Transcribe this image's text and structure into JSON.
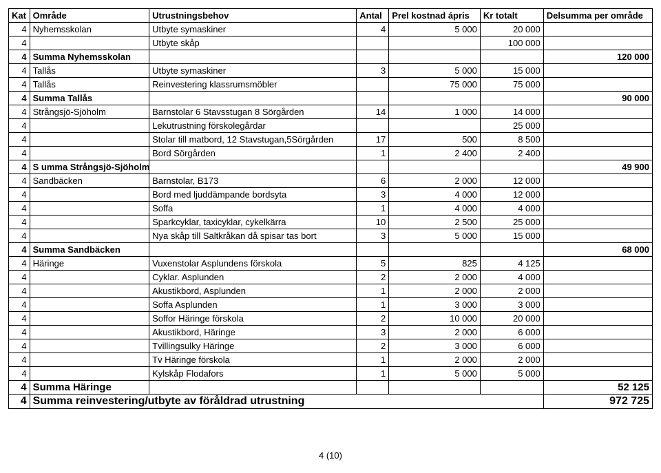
{
  "headers": {
    "kat": "Kat",
    "omrade": "Område",
    "behov": "Utrustningsbehov",
    "antal": "Antal",
    "apris": "Prel kostnad ápris",
    "totalt": "Kr totalt",
    "delsum": "Delsumma per område"
  },
  "rows": [
    {
      "kat": "4",
      "omrade": "Nyhemsskolan",
      "behov": "Utbyte symaskiner",
      "antal": "4",
      "apris": "5 000",
      "totalt": "20 000",
      "delsum": ""
    },
    {
      "kat": "4",
      "omrade": "",
      "behov": "Utbyte skåp",
      "antal": "",
      "apris": "",
      "totalt": "100 000",
      "delsum": ""
    },
    {
      "kat": "4",
      "omrade": "Summa Nyhemsskolan",
      "behov": "",
      "antal": "",
      "apris": "",
      "totalt": "",
      "delsum": "120 000",
      "bold": true
    },
    {
      "kat": "4",
      "omrade": "Tallås",
      "behov": "Utbyte symaskiner",
      "antal": "3",
      "apris": "5 000",
      "totalt": "15 000",
      "delsum": ""
    },
    {
      "kat": "4",
      "omrade": "Tallås",
      "behov": "Reinvestering klassrumsmöbler",
      "antal": "",
      "apris": "75 000",
      "totalt": "75 000",
      "delsum": ""
    },
    {
      "kat": "4",
      "omrade": "Summa Tallås",
      "behov": "",
      "antal": "",
      "apris": "",
      "totalt": "",
      "delsum": "90 000",
      "bold": true
    },
    {
      "kat": "4",
      "omrade": "Strångsjö-Sjöholm",
      "behov": "Barnstolar 6 Stavsstugan 8 Sörgården",
      "antal": "14",
      "apris": "1 000",
      "totalt": "14 000",
      "delsum": ""
    },
    {
      "kat": "4",
      "omrade": "",
      "behov": "Lekutrustning förskolegårdar",
      "antal": "",
      "apris": "",
      "totalt": "25 000",
      "delsum": ""
    },
    {
      "kat": "4",
      "omrade": "",
      "behov": "Stolar till matbord, 12 Stavstugan,5Sörgården",
      "antal": "17",
      "apris": "500",
      "totalt": "8 500",
      "delsum": ""
    },
    {
      "kat": "4",
      "omrade": "",
      "behov": "Bord Sörgården",
      "antal": "1",
      "apris": "2 400",
      "totalt": "2 400",
      "delsum": ""
    },
    {
      "kat": "4",
      "omrade": "S umma Strångsjö-Sjöholm",
      "behov": "",
      "antal": "",
      "apris": "",
      "totalt": "",
      "delsum": "49 900",
      "bold": true
    },
    {
      "kat": "4",
      "omrade": "Sandbäcken",
      "behov": "Barnstolar, B173",
      "antal": "6",
      "apris": "2 000",
      "totalt": "12 000",
      "delsum": ""
    },
    {
      "kat": "4",
      "omrade": "",
      "behov": "Bord med ljuddämpande bordsyta",
      "antal": "3",
      "apris": "4 000",
      "totalt": "12 000",
      "delsum": ""
    },
    {
      "kat": "4",
      "omrade": "",
      "behov": "Soffa",
      "antal": "1",
      "apris": "4 000",
      "totalt": "4 000",
      "delsum": ""
    },
    {
      "kat": "4",
      "omrade": "",
      "behov": "Sparkcyklar, taxicyklar, cykelkärra",
      "antal": "10",
      "apris": "2 500",
      "totalt": "25 000",
      "delsum": ""
    },
    {
      "kat": "4",
      "omrade": "",
      "behov": "Nya skåp till Saltkråkan då spisar tas bort",
      "antal": "3",
      "apris": "5 000",
      "totalt": "15 000",
      "delsum": ""
    },
    {
      "kat": "4",
      "omrade": "Summa Sandbäcken",
      "behov": "",
      "antal": "",
      "apris": "",
      "totalt": "",
      "delsum": "68 000",
      "bold": true
    },
    {
      "kat": "4",
      "omrade": "Häringe",
      "behov": "Vuxenstolar Asplundens förskola",
      "antal": "5",
      "apris": "825",
      "totalt": "4 125",
      "delsum": ""
    },
    {
      "kat": "4",
      "omrade": "",
      "behov": "Cyklar. Asplunden",
      "antal": "2",
      "apris": "2 000",
      "totalt": "4 000",
      "delsum": ""
    },
    {
      "kat": "4",
      "omrade": "",
      "behov": "Akustikbord, Asplunden",
      "antal": "1",
      "apris": "2 000",
      "totalt": "2 000",
      "delsum": ""
    },
    {
      "kat": "4",
      "omrade": "",
      "behov": "Soffa Asplunden",
      "antal": "1",
      "apris": "3 000",
      "totalt": "3 000",
      "delsum": ""
    },
    {
      "kat": "4",
      "omrade": "",
      "behov": "Soffor Häringe förskola",
      "antal": "2",
      "apris": "10 000",
      "totalt": "20 000",
      "delsum": ""
    },
    {
      "kat": "4",
      "omrade": "",
      "behov": "Akustikbord, Häringe",
      "antal": "3",
      "apris": "2 000",
      "totalt": "6 000",
      "delsum": ""
    },
    {
      "kat": "4",
      "omrade": "",
      "behov": "Tvillingsulky Häringe",
      "antal": "2",
      "apris": "3 000",
      "totalt": "6 000",
      "delsum": ""
    },
    {
      "kat": "4",
      "omrade": "",
      "behov": "Tv Häringe förskola",
      "antal": "1",
      "apris": "2 000",
      "totalt": "2 000",
      "delsum": ""
    },
    {
      "kat": "4",
      "omrade": "",
      "behov": "Kylskåp Flodafors",
      "antal": "1",
      "apris": "5 000",
      "totalt": "5 000",
      "delsum": ""
    },
    {
      "kat": "4",
      "omrade": "Summa Häringe",
      "behov": "",
      "antal": "",
      "apris": "",
      "totalt": "",
      "delsum": "52 125",
      "near": true
    },
    {
      "kat": "4",
      "omrade": "Summa reinvestering/utbyte av föråldrad utrustning",
      "behov": "",
      "antal": "",
      "apris": "",
      "totalt": "",
      "delsum": "972 725",
      "final": true,
      "merge": true
    }
  ],
  "footer": "4 (10)"
}
